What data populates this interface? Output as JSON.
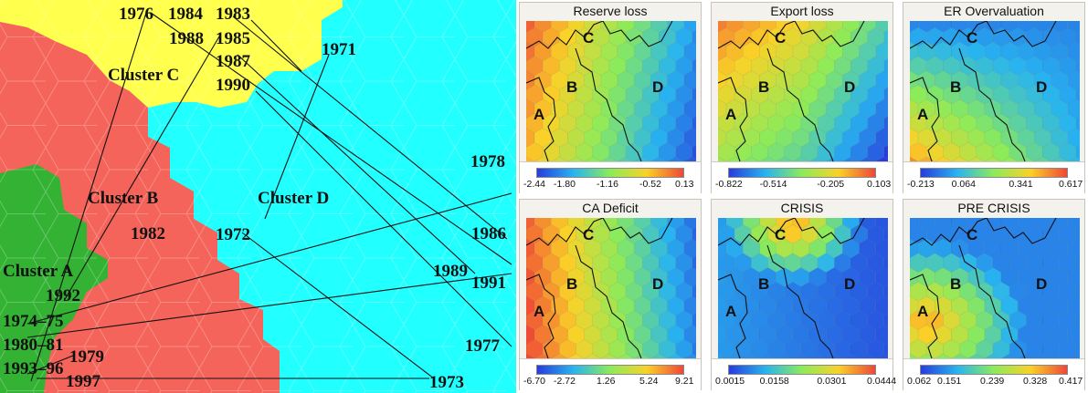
{
  "map": {
    "clusters": {
      "a": "Cluster A",
      "b": "Cluster B",
      "c": "Cluster C",
      "d": "Cluster D"
    },
    "colors": {
      "a": "#33b233",
      "b": "#f4645a",
      "c": "#ffff4d",
      "d": "#22ffff",
      "hex_line": "#d0d0d0"
    },
    "years": {
      "y1976": "1976",
      "y1984": "1984",
      "y1983": "1983",
      "y1988": "1988",
      "y1985": "1985",
      "y1987": "1987",
      "y1990": "1990",
      "y1971": "1971",
      "y1978": "1978",
      "y1986": "1986",
      "y1989": "1989",
      "y1991": "1991",
      "y1977": "1977",
      "y1973": "1973",
      "y1972": "1972",
      "y1982": "1982",
      "y1992": "1992",
      "y1974_75": "1974–75",
      "y1980_81": "1980–81",
      "y1979": "1979",
      "y1993_96": "1993–96",
      "y1997": "1997"
    }
  },
  "panels": [
    {
      "title": "Reserve loss",
      "ticks": [
        "-2.44",
        "-1.80",
        "-1.16",
        "-0.52",
        "0.13"
      ],
      "letters": {
        "a": "A",
        "b": "B",
        "c": "C",
        "d": "D"
      }
    },
    {
      "title": "Export loss",
      "ticks": [
        "-0.822",
        "-0.514",
        "-0.205",
        "0.103"
      ],
      "letters": {
        "a": "A",
        "b": "B",
        "c": "C",
        "d": "D"
      }
    },
    {
      "title": "ER Overvaluation",
      "ticks": [
        "-0.213",
        "0.064",
        "0.341",
        "0.617"
      ],
      "letters": {
        "a": "A",
        "b": "B",
        "c": "C",
        "d": "D"
      }
    },
    {
      "title": "CA Deficit",
      "ticks": [
        "-6.70",
        "-2.72",
        "1.26",
        "5.24",
        "9.21"
      ],
      "letters": {
        "a": "A",
        "b": "B",
        "c": "C",
        "d": "D"
      }
    },
    {
      "title": "CRISIS",
      "ticks": [
        "0.0015",
        "0.0158",
        "0.0301",
        "0.0444"
      ],
      "letters": {
        "a": "A",
        "b": "B",
        "c": "C",
        "d": "D"
      }
    },
    {
      "title": "PRE CRISIS",
      "ticks": [
        "0.062",
        "0.151",
        "0.239",
        "0.328",
        "0.417"
      ],
      "letters": {
        "a": "A",
        "b": "B",
        "c": "C",
        "d": "D"
      }
    }
  ]
}
